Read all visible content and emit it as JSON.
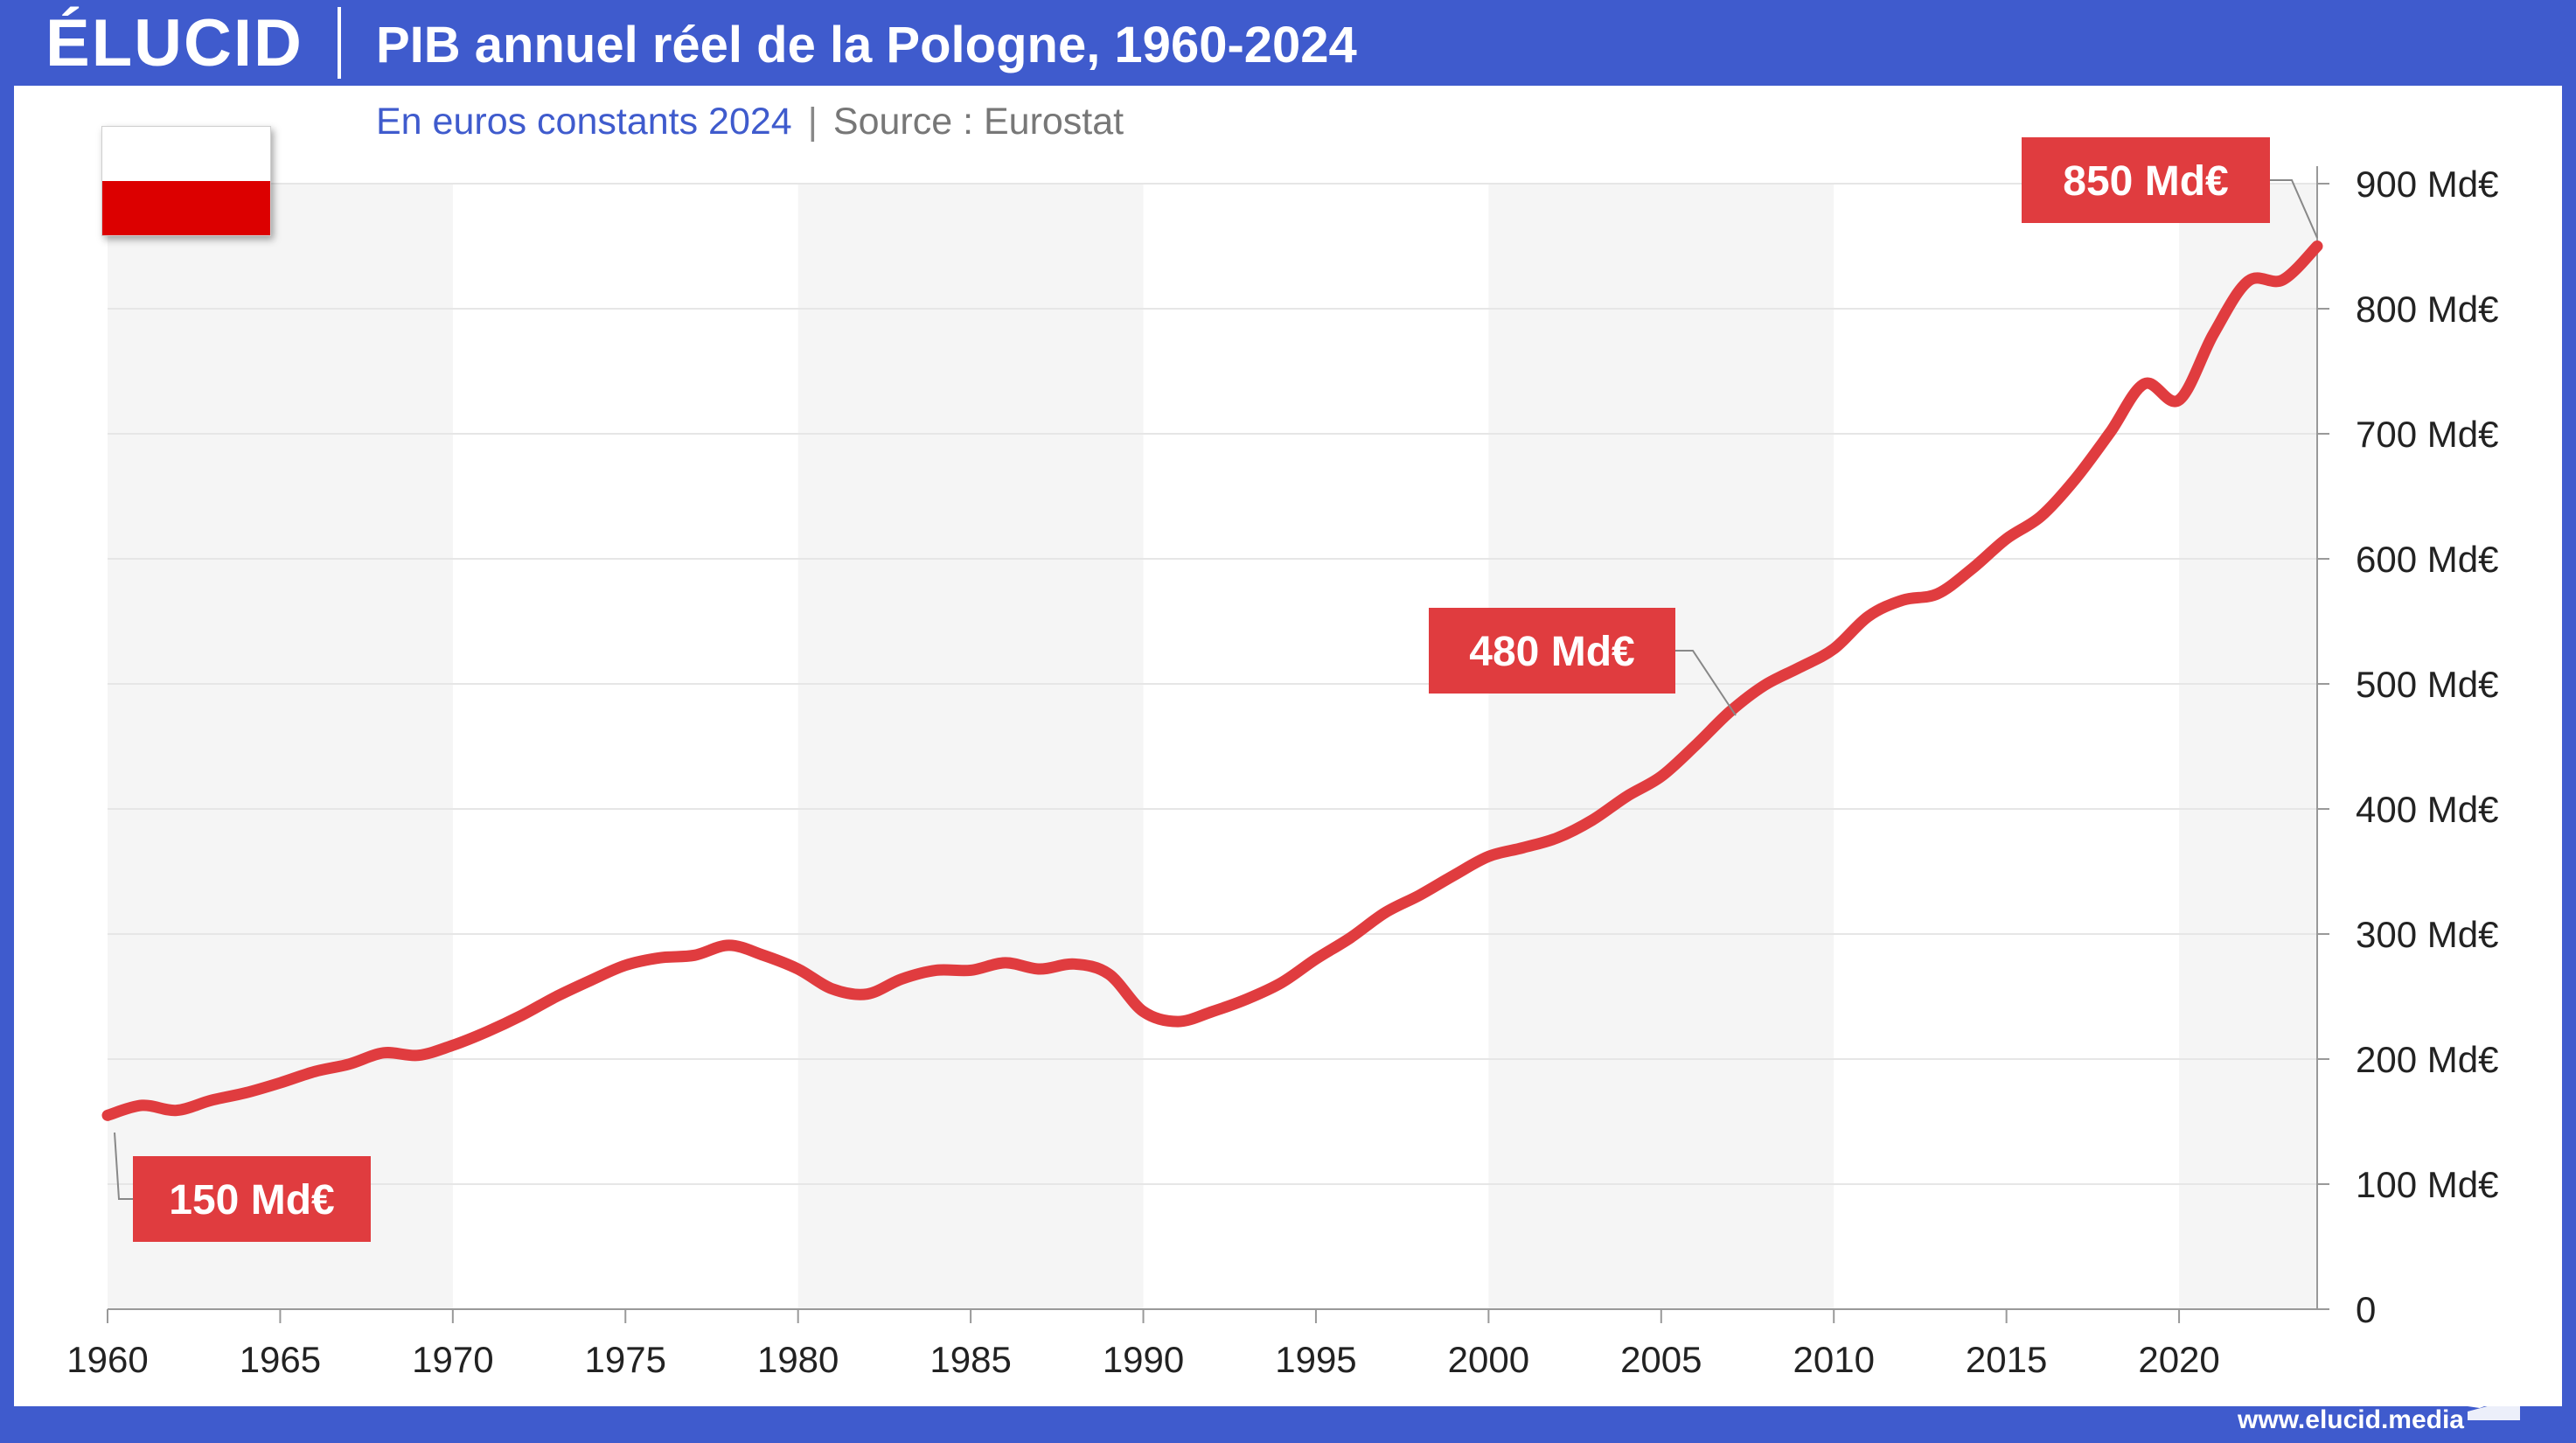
{
  "header": {
    "logo": "ÉLUCID",
    "title": "PIB annuel réel de la Pologne, 1960-2024"
  },
  "subtitle": {
    "unit": "En euros constants 2024",
    "separator": "|",
    "source": "Source : Eurostat"
  },
  "footer": {
    "website": "www.elucid.media"
  },
  "flag": {
    "country": "Pologne",
    "colors": [
      "#ffffff",
      "#dc0000"
    ]
  },
  "colors": {
    "brand": "#3f5bcd",
    "line": "#e03c3f",
    "callout": "#e03c3f",
    "band": "#f5f5f5",
    "grid": "#e6e6e6"
  },
  "chart_data": {
    "type": "line",
    "title": "PIB annuel réel de la Pologne, 1960-2024",
    "xlabel": "",
    "ylabel": "",
    "xlim": [
      1960,
      2024
    ],
    "ylim": [
      0,
      900
    ],
    "y_axis_position": "right",
    "grid": true,
    "x_ticks": [
      1960,
      1965,
      1970,
      1975,
      1980,
      1985,
      1990,
      1995,
      2000,
      2005,
      2010,
      2015,
      2020
    ],
    "x_tick_labels": [
      "1960",
      "1965",
      "1970",
      "1975",
      "1980",
      "1985",
      "1990",
      "1995",
      "2000",
      "2005",
      "2010",
      "2015",
      "2020"
    ],
    "y_ticks": [
      0,
      100,
      200,
      300,
      400,
      500,
      600,
      700,
      800,
      900
    ],
    "y_tick_labels": [
      "0",
      "100 Md€",
      "200 Md€",
      "300 Md€",
      "400 Md€",
      "500 Md€",
      "600 Md€",
      "700 Md€",
      "800 Md€",
      "900 Md€"
    ],
    "bands": [
      [
        1960,
        1970
      ],
      [
        1980,
        1990
      ],
      [
        2000,
        2010
      ],
      [
        2020,
        2024
      ]
    ],
    "series": [
      {
        "x": [
          1960,
          1961,
          1962,
          1963,
          1964,
          1965,
          1966,
          1967,
          1968,
          1969,
          1970,
          1971,
          1972,
          1973,
          1974,
          1975,
          1976,
          1977,
          1978,
          1979,
          1980,
          1981,
          1982,
          1983,
          1984,
          1985,
          1986,
          1987,
          1988,
          1989,
          1990,
          1991,
          1992,
          1993,
          1994,
          1995,
          1996,
          1997,
          1998,
          1999,
          2000,
          2001,
          2002,
          2003,
          2004,
          2005,
          2006,
          2007,
          2008,
          2009,
          2010,
          2011,
          2012,
          2013,
          2014,
          2015,
          2016,
          2017,
          2018,
          2019,
          2020,
          2021,
          2022,
          2023,
          2024
        ],
        "values": [
          155,
          163,
          159,
          167,
          173,
          181,
          190,
          196,
          205,
          203,
          211,
          222,
          235,
          250,
          263,
          275,
          281,
          283,
          291,
          283,
          272,
          256,
          252,
          264,
          271,
          271,
          277,
          272,
          276,
          268,
          238,
          230,
          238,
          248,
          261,
          280,
          297,
          317,
          331,
          347,
          362,
          369,
          377,
          391,
          410,
          426,
          451,
          478,
          499,
          513,
          528,
          554,
          567,
          572,
          592,
          616,
          634,
          664,
          701,
          740,
          727,
          780,
          822,
          823,
          850
        ]
      }
    ],
    "annotations": [
      {
        "x": 1960,
        "y": 155,
        "label": "150 Md€"
      },
      {
        "x": 2007,
        "y": 478,
        "label": "480 Md€"
      },
      {
        "x": 2024,
        "y": 850,
        "label": "850 Md€"
      }
    ]
  }
}
